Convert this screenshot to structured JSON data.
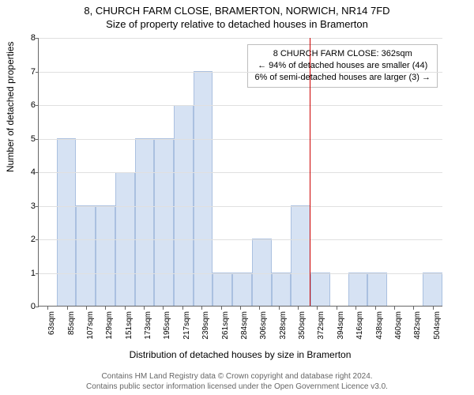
{
  "title_line1": "8, CHURCH FARM CLOSE, BRAMERTON, NORWICH, NR14 7FD",
  "title_line2": "Size of property relative to detached houses in Bramerton",
  "ylabel": "Number of detached properties",
  "xlabel": "Distribution of detached houses by size in Bramerton",
  "chart": {
    "type": "histogram",
    "ylim": [
      0,
      8
    ],
    "ytick_step": 1,
    "bar_color": "#d6e2f3",
    "bar_border": "#aac0e0",
    "grid_color": "#e0e0e0",
    "axis_color": "#666666",
    "background_color": "#ffffff",
    "vline_color": "#cc0000",
    "vline_x_value": 362,
    "annotation": {
      "line1": "8 CHURCH FARM CLOSE: 362sqm",
      "line2": "← 94% of detached houses are smaller (44)",
      "line3": "6% of semi-detached houses are larger (3) →",
      "box_border": "#bdbdbd",
      "box_bg": "#ffffff",
      "font_size": 11
    },
    "categories": [
      "63sqm",
      "85sqm",
      "107sqm",
      "129sqm",
      "151sqm",
      "173sqm",
      "195sqm",
      "217sqm",
      "239sqm",
      "261sqm",
      "284sqm",
      "306sqm",
      "328sqm",
      "350sqm",
      "372sqm",
      "394sqm",
      "416sqm",
      "438sqm",
      "460sqm",
      "482sqm",
      "504sqm"
    ],
    "values": [
      0,
      5,
      3,
      3,
      4,
      5,
      5,
      6,
      7,
      1,
      1,
      2,
      1,
      3,
      1,
      0,
      1,
      1,
      0,
      0,
      1
    ],
    "title_fontsize": 13,
    "label_fontsize": 12,
    "tick_fontsize": 11,
    "xtick_fontsize": 10
  },
  "footer": {
    "line1": "Contains HM Land Registry data © Crown copyright and database right 2024.",
    "line2": "Contains public sector information licensed under the Open Government Licence v3.0.",
    "color": "#666666",
    "font_size": 10
  }
}
